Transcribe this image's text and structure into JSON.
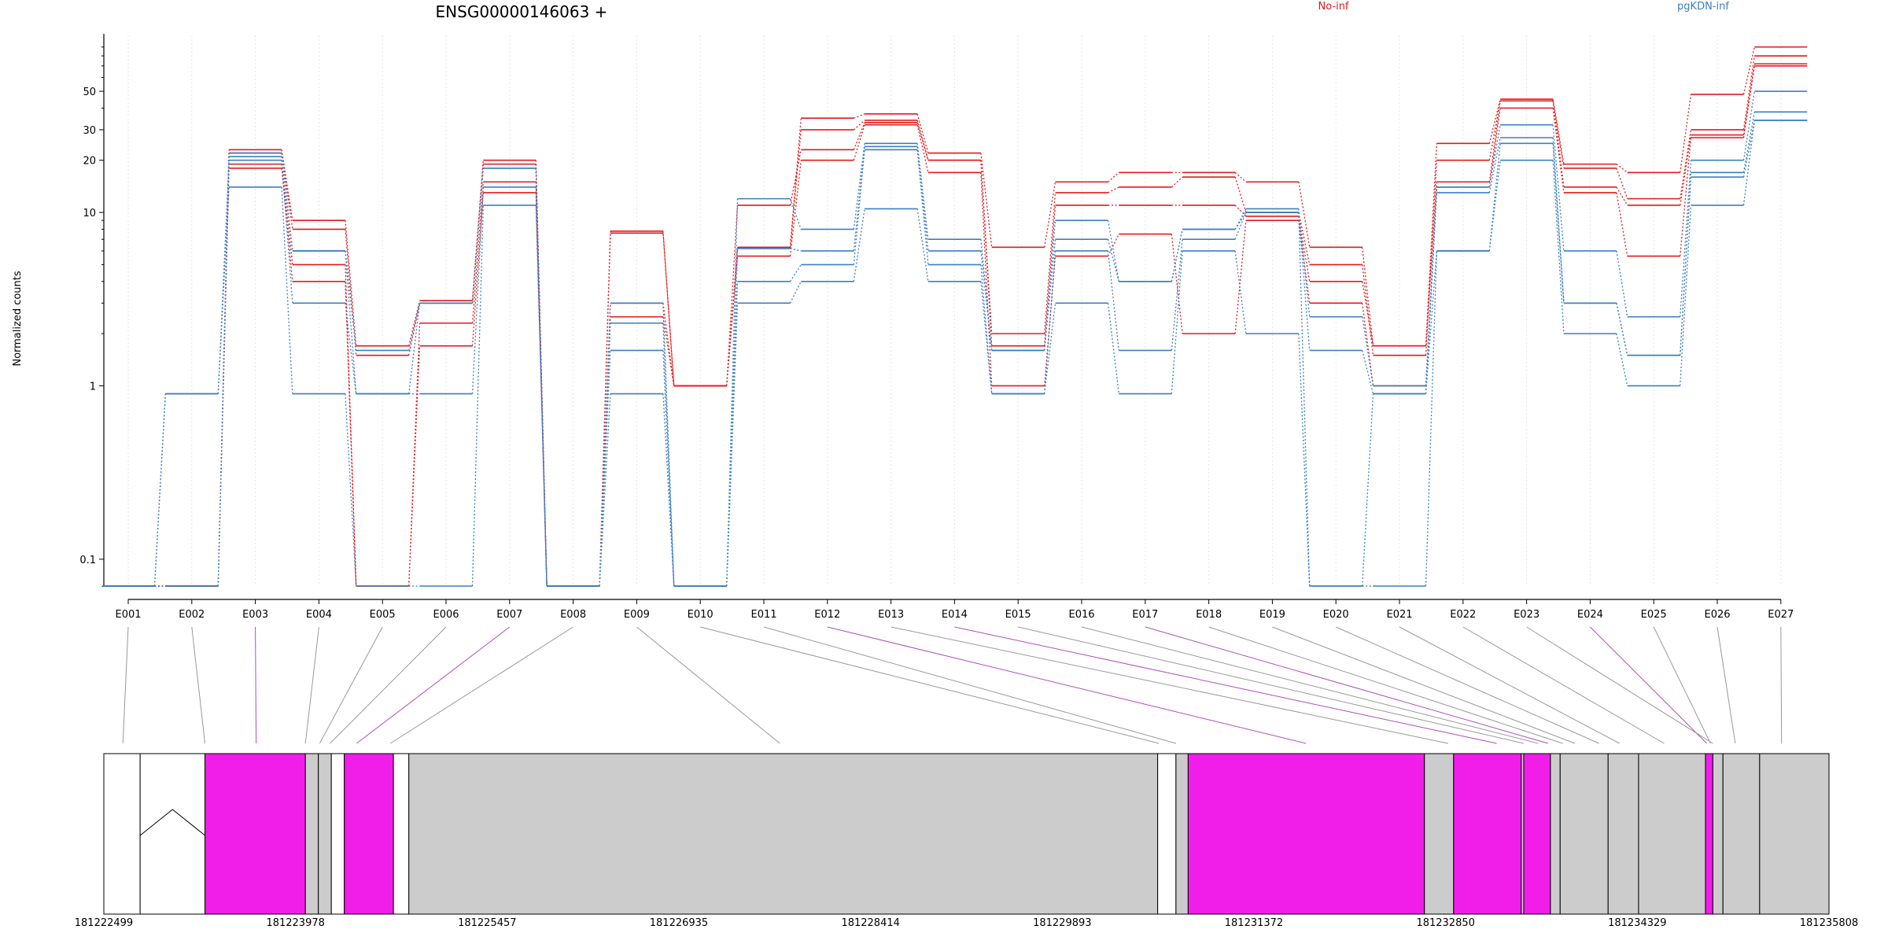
{
  "chart_data": {
    "type": "line",
    "title": "ENSG00000146063 +",
    "ylabel": "Normalized counts",
    "xlabel": "",
    "y_scale": "log",
    "ylim": [
      0.07,
      105
    ],
    "y_ticks": [
      {
        "value": 0.1,
        "label": "0.1"
      },
      {
        "value": 1,
        "label": "1"
      },
      {
        "value": 10,
        "label": "10"
      },
      {
        "value": 20,
        "label": "20"
      },
      {
        "value": 30,
        "label": "30"
      },
      {
        "value": 50,
        "label": "50"
      }
    ],
    "categories": [
      "E001",
      "E002",
      "E003",
      "E004",
      "E005",
      "E006",
      "E007",
      "E008",
      "E009",
      "E010",
      "E011",
      "E012",
      "E013",
      "E014",
      "E015",
      "E016",
      "E017",
      "E018",
      "E019",
      "E020",
      "E021",
      "E022",
      "E023",
      "E024",
      "E025",
      "E026",
      "E027"
    ],
    "legend": [
      {
        "name": "No-inf",
        "color": "#e31a1c",
        "position": "top-center-right"
      },
      {
        "name": "pgKDN-inf",
        "color": "#3b7fc0",
        "position": "top-right"
      }
    ],
    "series": [
      {
        "group": "No-inf",
        "color": "#e31a1c",
        "values": [
          0.07,
          0.07,
          23,
          9,
          1.7,
          3.1,
          20,
          0.07,
          7.8,
          1,
          6.3,
          35,
          37,
          22,
          6.3,
          15,
          17,
          17,
          15,
          6.3,
          1.7,
          25,
          45,
          19,
          17,
          48,
          90
        ]
      },
      {
        "group": "No-inf",
        "color": "#e31a1c",
        "values": [
          0.07,
          0.07,
          22,
          8,
          1.5,
          3,
          19,
          0.07,
          7.6,
          1,
          6.2,
          30,
          34,
          20,
          2,
          13,
          14,
          16,
          10,
          5,
          1.5,
          20,
          44,
          18,
          12,
          30,
          80
        ]
      },
      {
        "group": "No-inf",
        "color": "#e31a1c",
        "values": [
          0.07,
          0.07,
          19,
          5,
          0.07,
          2.3,
          15,
          0.07,
          3,
          1,
          11,
          23,
          33,
          20,
          1.7,
          11,
          11,
          11,
          9.5,
          4,
          1.7,
          15,
          44,
          14,
          11,
          28,
          72
        ]
      },
      {
        "group": "No-inf",
        "color": "#e31a1c",
        "values": [
          0.07,
          0.07,
          18,
          4,
          0.07,
          1.7,
          13,
          0.07,
          2.5,
          1,
          5.6,
          20,
          32,
          17,
          1,
          5.6,
          7.5,
          2,
          9,
          3,
          1,
          14,
          40,
          13,
          5.6,
          27,
          70
        ]
      },
      {
        "group": "pgKDN-inf",
        "color": "#3b7fc0",
        "values": [
          0.07,
          0.07,
          22,
          6,
          1.6,
          3,
          18,
          0.07,
          3,
          0.07,
          12,
          8,
          25,
          7,
          1.6,
          9,
          4,
          8,
          10.5,
          2.5,
          1,
          14,
          32,
          6,
          2.5,
          20,
          50
        ]
      },
      {
        "group": "pgKDN-inf",
        "color": "#3b7fc0",
        "values": [
          0.07,
          0.07,
          21,
          6,
          0.9,
          3,
          18,
          0.07,
          2.3,
          0.07,
          6.2,
          6,
          24,
          6,
          1.6,
          7,
          4,
          8,
          10,
          1.6,
          0.9,
          13,
          27,
          3,
          1.5,
          17,
          38
        ]
      },
      {
        "group": "pgKDN-inf",
        "color": "#3b7fc0",
        "values": [
          0.07,
          0.9,
          20,
          3,
          0.9,
          0.9,
          14,
          0.07,
          1.6,
          0.07,
          4,
          5,
          23,
          5,
          0.9,
          6,
          1.6,
          7,
          10,
          0.07,
          0.9,
          6,
          25,
          3,
          1.5,
          16,
          34
        ]
      },
      {
        "group": "pgKDN-inf",
        "color": "#3b7fc0",
        "values": [
          0.07,
          0.9,
          14,
          0.9,
          0.07,
          0.07,
          11,
          0.07,
          0.9,
          0.07,
          3,
          4,
          10.5,
          4,
          0.9,
          3,
          0.9,
          6,
          2,
          0.07,
          0.07,
          6,
          20,
          2,
          1,
          11,
          34
        ]
      }
    ],
    "gene_model": {
      "coord_ticks": [
        "181222499",
        "181223978",
        "181225457",
        "181226935",
        "181228414",
        "181229893",
        "181231372",
        "181232850",
        "181234329",
        "181235808"
      ],
      "coord_start": 181222499,
      "coord_end": 181235808,
      "colors": {
        "highlight": "#f01ee8",
        "normal": "#cccccc",
        "empty": "#ffffff",
        "link_normal": "#999999",
        "link_highlight": "#b04cc0"
      },
      "segments": [
        {
          "start": 181222499,
          "end": 181222779,
          "kind": "empty"
        },
        {
          "start": 181222779,
          "end": 181223279,
          "kind": "intron"
        },
        {
          "start": 181223279,
          "end": 181224054,
          "kind": "highlight"
        },
        {
          "start": 181224054,
          "end": 181224154,
          "kind": "normal"
        },
        {
          "start": 181224154,
          "end": 181224254,
          "kind": "normal"
        },
        {
          "start": 181224254,
          "end": 181224354,
          "kind": "empty"
        },
        {
          "start": 181224354,
          "end": 181224733,
          "kind": "highlight"
        },
        {
          "start": 181224733,
          "end": 181224852,
          "kind": "empty"
        },
        {
          "start": 181224852,
          "end": 181230629,
          "kind": "normal"
        },
        {
          "start": 181230629,
          "end": 181230770,
          "kind": "empty"
        },
        {
          "start": 181230770,
          "end": 181230864,
          "kind": "normal"
        },
        {
          "start": 181230864,
          "end": 181232687,
          "kind": "highlight"
        },
        {
          "start": 181232687,
          "end": 181232912,
          "kind": "normal"
        },
        {
          "start": 181232912,
          "end": 181233434,
          "kind": "highlight"
        },
        {
          "start": 181233434,
          "end": 181233453,
          "kind": "normal"
        },
        {
          "start": 181233453,
          "end": 181233659,
          "kind": "highlight"
        },
        {
          "start": 181233659,
          "end": 181233734,
          "kind": "normal"
        },
        {
          "start": 181233734,
          "end": 181234104,
          "kind": "normal"
        },
        {
          "start": 181234104,
          "end": 181234339,
          "kind": "normal"
        },
        {
          "start": 181234339,
          "end": 181234855,
          "kind": "normal"
        },
        {
          "start": 181234855,
          "end": 181234912,
          "kind": "highlight"
        },
        {
          "start": 181234912,
          "end": 181234990,
          "kind": "normal"
        },
        {
          "start": 181234990,
          "end": 181235273,
          "kind": "normal"
        },
        {
          "start": 181235273,
          "end": 181235808,
          "kind": "normal"
        }
      ],
      "exon_links": [
        {
          "exon": "E001",
          "pos": 181222646,
          "highlight": false
        },
        {
          "exon": "E002",
          "pos": 181223279,
          "highlight": false
        },
        {
          "exon": "E003",
          "pos": 181223674,
          "highlight": true
        },
        {
          "exon": "E004",
          "pos": 181224054,
          "highlight": false
        },
        {
          "exon": "E005",
          "pos": 181224164,
          "highlight": false
        },
        {
          "exon": "E006",
          "pos": 181224244,
          "highlight": false
        },
        {
          "exon": "E007",
          "pos": 181224449,
          "highlight": true
        },
        {
          "exon": "E008",
          "pos": 181224709,
          "highlight": false
        },
        {
          "exon": "E009",
          "pos": 181227714,
          "highlight": false
        },
        {
          "exon": "E010",
          "pos": 181230639,
          "highlight": false
        },
        {
          "exon": "E011",
          "pos": 181230770,
          "highlight": false
        },
        {
          "exon": "E012",
          "pos": 181231773,
          "highlight": true
        },
        {
          "exon": "E013",
          "pos": 181232869,
          "highlight": false
        },
        {
          "exon": "E014",
          "pos": 181233244,
          "highlight": true
        },
        {
          "exon": "E015",
          "pos": 181233453,
          "highlight": false
        },
        {
          "exon": "E016",
          "pos": 181233565,
          "highlight": false
        },
        {
          "exon": "E017",
          "pos": 181233640,
          "highlight": true
        },
        {
          "exon": "E018",
          "pos": 181233753,
          "highlight": false
        },
        {
          "exon": "E019",
          "pos": 181233847,
          "highlight": false
        },
        {
          "exon": "E020",
          "pos": 181234034,
          "highlight": false
        },
        {
          "exon": "E021",
          "pos": 181234192,
          "highlight": false
        },
        {
          "exon": "E022",
          "pos": 181234536,
          "highlight": false
        },
        {
          "exon": "E023",
          "pos": 181234912,
          "highlight": false
        },
        {
          "exon": "E024",
          "pos": 181234865,
          "highlight": true
        },
        {
          "exon": "E025",
          "pos": 181234894,
          "highlight": false
        },
        {
          "exon": "E026",
          "pos": 181235085,
          "highlight": false
        },
        {
          "exon": "E027",
          "pos": 181235442,
          "highlight": false
        }
      ]
    }
  }
}
